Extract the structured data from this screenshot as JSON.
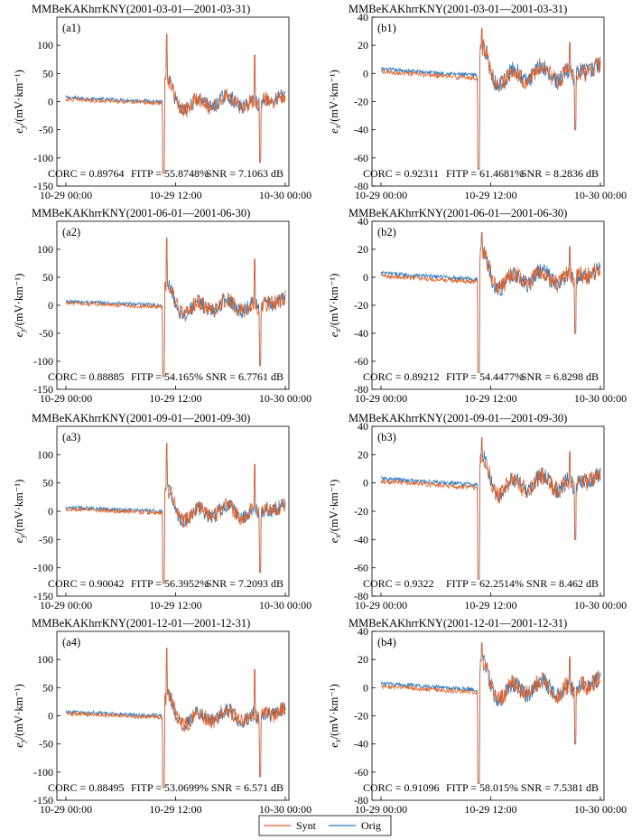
{
  "legend": [
    {
      "label": "Synt",
      "color": "#E0622A"
    },
    {
      "label": "Orig",
      "color": "#2A7BBF"
    }
  ],
  "colors": {
    "synt": "#E0622A",
    "orig": "#2A7BBF",
    "axis": "#000000"
  },
  "chart_data": [
    {
      "id": "a1",
      "type": "line",
      "title": "MMBeKAKhrrKNY(2001-03-01—2001-03-31)",
      "panel_label": "(a1)",
      "ylabel": "e",
      "ylabel_sub": "y",
      "ylabel_unit": "/(mV·km⁻¹)",
      "ylim": [
        -150,
        150
      ],
      "yticks": [
        "100",
        "50",
        "0",
        "-50",
        "-100",
        "-150"
      ],
      "xticks": [
        "10-29 00:00",
        "10-29 12:00",
        "10-30 00:00"
      ],
      "stats": {
        "corc": "CORC = 0.89764",
        "fitp": "FITP = 55.8748%",
        "snr": "SNR = 7.1063 dB"
      },
      "series_names": [
        "Synt",
        "Orig"
      ]
    },
    {
      "id": "b1",
      "type": "line",
      "title": "MMBeKAKhrrKNY(2001-03-01—2001-03-31)",
      "panel_label": "(b1)",
      "ylabel": "e",
      "ylabel_sub": "x",
      "ylabel_unit": "/(mV·km⁻¹)",
      "ylim": [
        -80,
        40
      ],
      "yticks": [
        "40",
        "20",
        "0",
        "-20",
        "-40",
        "-60",
        "-80"
      ],
      "xticks": [
        "10-29 00:00",
        "10-29 12:00",
        "10-30 00:00"
      ],
      "stats": {
        "corc": "CORC = 0.92311",
        "fitp": "FITP = 61.4681%",
        "snr": "SNR = 8.2836 dB"
      },
      "series_names": [
        "Synt",
        "Orig"
      ]
    },
    {
      "id": "a2",
      "type": "line",
      "title": "MMBeKAKhrrKNY(2001-06-01—2001-06-30)",
      "panel_label": "(a2)",
      "ylabel": "e",
      "ylabel_sub": "y",
      "ylabel_unit": "/(mV·km⁻¹)",
      "ylim": [
        -150,
        150
      ],
      "yticks": [
        "100",
        "50",
        "0",
        "-50",
        "-100",
        "-150"
      ],
      "xticks": [
        "10-29 00:00",
        "10-29 12:00",
        "10-30 00:00"
      ],
      "stats": {
        "corc": "CORC = 0.88885",
        "fitp": "FITP = 54.165%",
        "snr": "SNR = 6.7761 dB"
      },
      "series_names": [
        "Synt",
        "Orig"
      ]
    },
    {
      "id": "b2",
      "type": "line",
      "title": "MMBeKAKhrrKNY(2001-06-01—2001-06-30)",
      "panel_label": "(b2)",
      "ylabel": "e",
      "ylabel_sub": "x",
      "ylabel_unit": "/(mV·km⁻¹)",
      "ylim": [
        -80,
        40
      ],
      "yticks": [
        "40",
        "20",
        "0",
        "-20",
        "-40",
        "-60",
        "-80"
      ],
      "xticks": [
        "10-29 00:00",
        "10-29 12:00",
        "10-30 00:00"
      ],
      "stats": {
        "corc": "CORC = 0.89212",
        "fitp": "FITP = 54.4477%",
        "snr": "SNR = 6.8298 dB"
      },
      "series_names": [
        "Synt",
        "Orig"
      ]
    },
    {
      "id": "a3",
      "type": "line",
      "title": "MMBeKAKhrrKNY(2001-09-01—2001-09-30)",
      "panel_label": "(a3)",
      "ylabel": "e",
      "ylabel_sub": "y",
      "ylabel_unit": "/(mV·km⁻¹)",
      "ylim": [
        -150,
        150
      ],
      "yticks": [
        "100",
        "50",
        "0",
        "-50",
        "-100",
        "-150"
      ],
      "xticks": [
        "10-29 00:00",
        "10-29 12:00",
        "10-30 00:00"
      ],
      "stats": {
        "corc": "CORC = 0.90042",
        "fitp": "FITP = 56.3952%",
        "snr": "SNR = 7.2093 dB"
      },
      "series_names": [
        "Synt",
        "Orig"
      ]
    },
    {
      "id": "b3",
      "type": "line",
      "title": "MMBeKAKhrrKNY(2001-09-01—2001-09-30)",
      "panel_label": "(b3)",
      "ylabel": "e",
      "ylabel_sub": "x",
      "ylabel_unit": "/(mV·km⁻¹)",
      "ylim": [
        -80,
        40
      ],
      "yticks": [
        "40",
        "20",
        "0",
        "-20",
        "-40",
        "-60",
        "-80"
      ],
      "xticks": [
        "10-29 00:00",
        "10-29 12:00",
        "10-30 00:00"
      ],
      "stats": {
        "corc": "CORC = 0.9322",
        "fitp": "FITP = 62.2514%",
        "snr": "SNR = 8.462 dB"
      },
      "series_names": [
        "Synt",
        "Orig"
      ]
    },
    {
      "id": "a4",
      "type": "line",
      "title": "MMBeKAKhrrKNY(2001-12-01—2001-12-31)",
      "panel_label": "(a4)",
      "ylabel": "e",
      "ylabel_sub": "y",
      "ylabel_unit": "/(mV·km⁻¹)",
      "ylim": [
        -150,
        150
      ],
      "yticks": [
        "100",
        "50",
        "0",
        "-50",
        "-100",
        "-150"
      ],
      "xticks": [
        "10-29 00:00",
        "10-29 12:00",
        "10-30 00:00"
      ],
      "stats": {
        "corc": "CORC = 0.88495",
        "fitp": "FITP = 53.0699%",
        "snr": "SNR = 6.571 dB"
      },
      "series_names": [
        "Synt",
        "Orig"
      ]
    },
    {
      "id": "b4",
      "type": "line",
      "title": "MMBeKAKhrrKNY(2001-12-01—2001-12-31)",
      "panel_label": "(b4)",
      "ylabel": "e",
      "ylabel_sub": "x",
      "ylabel_unit": "/(mV·km⁻¹)",
      "ylim": [
        -80,
        40
      ],
      "yticks": [
        "40",
        "20",
        "0",
        "-20",
        "-40",
        "-60",
        "-80"
      ],
      "xticks": [
        "10-29 00:00",
        "10-29 12:00",
        "10-30 00:00"
      ],
      "stats": {
        "corc": "CORC = 0.91096",
        "fitp": "FITP = 58.015%",
        "snr": "SNR = 7.5381 dB"
      },
      "series_names": [
        "Synt",
        "Orig"
      ]
    }
  ]
}
